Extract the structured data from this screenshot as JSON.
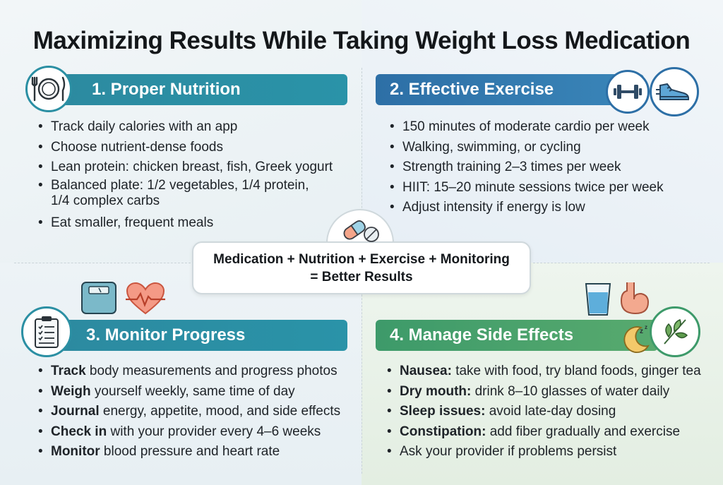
{
  "title": "Maximizing Results While Taking Weight Loss Medication",
  "sections": [
    {
      "heading": "1. Proper Nutrition",
      "icon": "plate-fork-knife-icon",
      "items": [
        {
          "bold": "",
          "text": "Track daily calories with an app"
        },
        {
          "bold": "",
          "text": "Choose nutrient-dense foods"
        },
        {
          "bold": "",
          "text": "Lean protein: chicken breast, fish, Greek yogurt"
        },
        {
          "bold": "",
          "text": "Balanced plate: 1/2 vegetables, 1/4 protein, 1/4 complex carbs"
        },
        {
          "bold": "",
          "text": "Eat smaller, frequent meals"
        }
      ]
    },
    {
      "heading": "2. Effective Exercise",
      "icon": "dumbbell-sneaker-icon",
      "items": [
        {
          "bold": "",
          "text": "150 minutes of moderate cardio per week"
        },
        {
          "bold": "",
          "text": "Walking, swimming, or cycling"
        },
        {
          "bold": "",
          "text": "Strength training 2–3 times per week"
        },
        {
          "bold": "",
          "text": "HIIT: 15–20 minute sessions twice per week"
        },
        {
          "bold": "",
          "text": "Adjust intensity if energy is low"
        }
      ]
    },
    {
      "heading": "3. Monitor Progress",
      "icon": "clipboard-scale-heart-icon",
      "items": [
        {
          "bold": "Track",
          "text": " body measurements and progress photos"
        },
        {
          "bold": "Weigh",
          "text": " yourself weekly, same time of day"
        },
        {
          "bold": "Journal",
          "text": " energy, appetite, mood, and side effects"
        },
        {
          "bold": "Check in",
          "text": " with your provider every 4–6 weeks"
        },
        {
          "bold": "Monitor",
          "text": " blood pressure and heart rate"
        }
      ]
    },
    {
      "heading": "4. Manage Side Effects",
      "icon": "water-stomach-moon-herb-icon",
      "items": [
        {
          "bold": "Nausea:",
          "text": " take with food, try bland foods, ginger tea"
        },
        {
          "bold": "Dry mouth:",
          "text": " drink 8–10 glasses of water daily"
        },
        {
          "bold": "Sleep issues:",
          "text": " avoid late-day dosing"
        },
        {
          "bold": "Constipation:",
          "text": " add fiber gradually and exercise"
        },
        {
          "bold": "",
          "text": "Ask your provider if problems persist"
        }
      ]
    }
  ],
  "center": {
    "line1": "Medication + Nutrition + Exercise + Monitoring",
    "line2": "= Better Results",
    "icon": "pills-icon"
  },
  "colors": {
    "teal": "#2a93a8",
    "blue": "#3a86b9",
    "green": "#58aa6e"
  }
}
